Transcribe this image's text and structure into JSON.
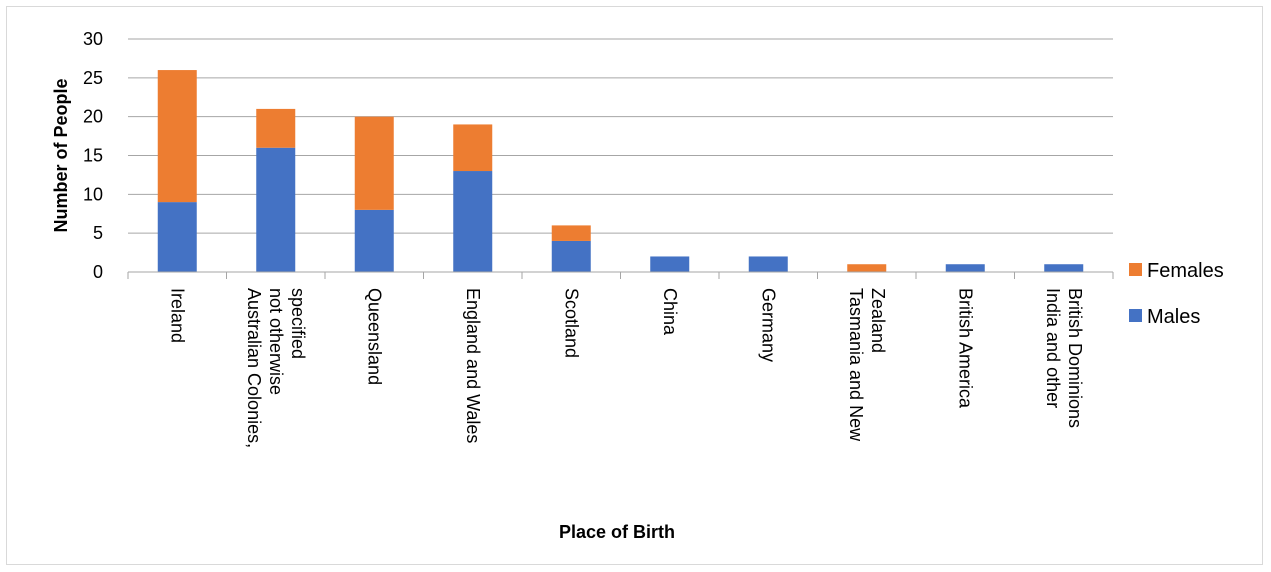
{
  "chart_data": {
    "type": "bar",
    "stacked": true,
    "categories": [
      "Ireland",
      "Australian Colonies, not otherwise specified",
      "Queensland",
      "England and Wales",
      "Scotland",
      "China",
      "Germany",
      "Tasmania and New Zealand",
      "British America",
      "India and other British Dominions"
    ],
    "category_lines": [
      [
        "Ireland"
      ],
      [
        "Australian Colonies,",
        "not otherwise",
        "specified"
      ],
      [
        "Queensland"
      ],
      [
        "England and Wales"
      ],
      [
        "Scotland"
      ],
      [
        "China"
      ],
      [
        "Germany"
      ],
      [
        "Tasmania and New",
        "Zealand"
      ],
      [
        "British America"
      ],
      [
        "India and other",
        "British Dominions"
      ]
    ],
    "series": [
      {
        "name": "Males",
        "color": "#4472c4",
        "values": [
          9,
          16,
          8,
          13,
          4,
          2,
          2,
          0,
          1,
          1
        ]
      },
      {
        "name": "Females",
        "color": "#ed7d31",
        "values": [
          17,
          5,
          12,
          6,
          2,
          0,
          0,
          1,
          0,
          0
        ]
      }
    ],
    "title": "",
    "xlabel": "Place of Birth",
    "ylabel": "Number of People",
    "ylim": [
      0,
      30
    ],
    "yticks": [
      0,
      5,
      10,
      15,
      20,
      25,
      30
    ],
    "grid": true,
    "legend_position": "right"
  }
}
